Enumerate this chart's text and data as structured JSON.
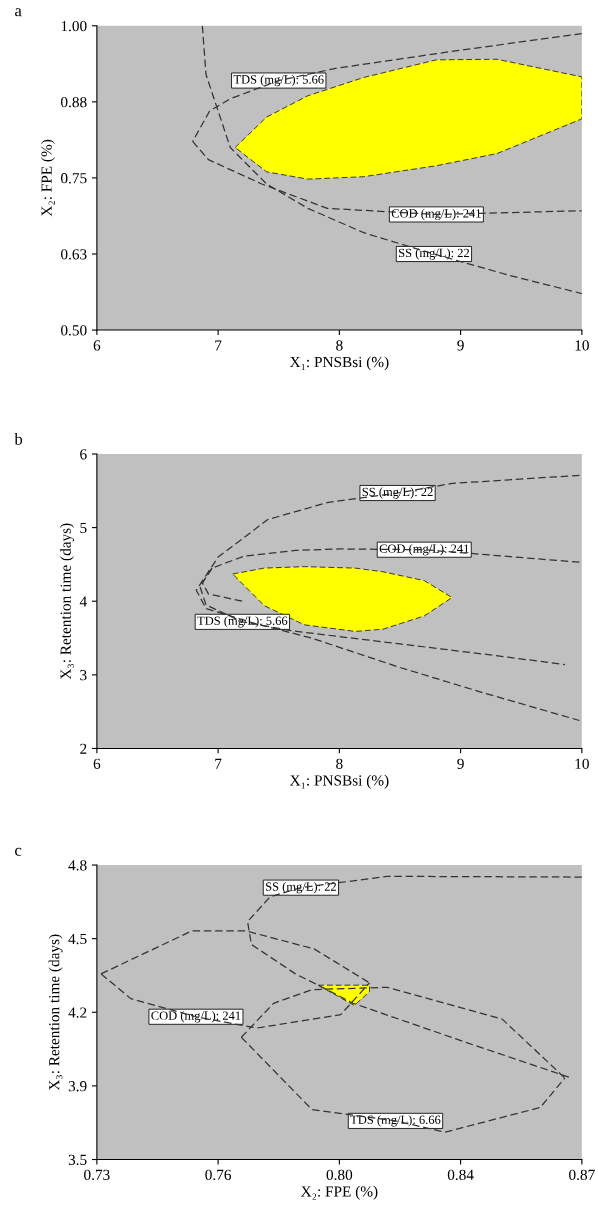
{
  "chart_data": [
    {
      "type": "line",
      "title": "a",
      "xlabel": "X₁: PNSBsi (%)",
      "ylabel": "X₂: FPE (%)",
      "xlim": [
        6,
        10
      ],
      "xticks": [
        6,
        7,
        8,
        9,
        10
      ],
      "ylim": [
        0.5,
        1.0
      ],
      "yticks": [
        {
          "value": 0.5,
          "label": "0.50"
        },
        {
          "value": 0.625,
          "label": "0.63"
        },
        {
          "value": 0.75,
          "label": "0.75"
        },
        {
          "value": 0.875,
          "label": "0.88"
        },
        {
          "value": 1.0,
          "label": "1.00"
        }
      ],
      "line_style": "dashed",
      "series": [
        {
          "type": "area",
          "color": "#ffff00",
          "x": [
            7.14,
            7.4,
            7.74,
            8.2,
            8.8,
            9.3,
            10,
            10,
            9.3,
            8.8,
            8.2,
            7.74,
            7.4
          ],
          "values": [
            0.8,
            0.85,
            0.885,
            0.915,
            0.944,
            0.945,
            0.916,
            0.847,
            0.79,
            0.77,
            0.752,
            0.748,
            0.76
          ]
        },
        {
          "color": "#333333",
          "x": [
            10,
            9,
            7.97,
            7.5,
            7.1,
            6.93,
            6.79
          ],
          "values": [
            0.987,
            0.96,
            0.93,
            0.91,
            0.88,
            0.86,
            0.81
          ]
        },
        {
          "color": "#333333",
          "x": [
            6.79,
            6.92,
            7.36,
            7.9,
            8.8,
            10
          ],
          "values": [
            0.81,
            0.78,
            0.74,
            0.7,
            0.69,
            0.696
          ]
        },
        {
          "color": "#333333",
          "x": [
            6.87,
            6.9,
            7.0,
            7.1,
            7.4,
            7.74,
            8.2,
            8.78,
            9.4,
            10
          ],
          "values": [
            1.0,
            0.92,
            0.86,
            0.8,
            0.74,
            0.7,
            0.66,
            0.625,
            0.59,
            0.56
          ]
        }
      ],
      "annotations": [
        {
          "text": "TDS (mg/L): 5.66",
          "x": 7.5,
          "y": 0.91
        },
        {
          "text": "COD (mg/L): 241",
          "x": 8.8,
          "y": 0.69
        },
        {
          "text": "SS (mg/L): 22",
          "x": 8.78,
          "y": 0.625
        }
      ]
    },
    {
      "type": "line",
      "title": "b",
      "xlabel": "X₁: PNSBsi (%)",
      "ylabel": "X₃: Retention time (days)",
      "xlim": [
        6,
        10
      ],
      "xticks": [
        6,
        7,
        8,
        9,
        10
      ],
      "ylim": [
        2,
        6
      ],
      "yticks": [
        2,
        3,
        4,
        5,
        6
      ],
      "line_style": "dashed",
      "series": [
        {
          "type": "area",
          "color": "#ffff00",
          "x": [
            7.12,
            7.38,
            7.71,
            8.13,
            8.36,
            8.7,
            8.93,
            8.7,
            8.36,
            8.13,
            7.71,
            7.38
          ],
          "values": [
            4.37,
            4.45,
            4.47,
            4.45,
            4.4,
            4.28,
            4.05,
            3.8,
            3.62,
            3.59,
            3.68,
            3.94
          ]
        },
        {
          "color": "#333333",
          "x": [
            9.98,
            8.93,
            8.48,
            7.9,
            7.41,
            7.0,
            6.82,
            6.9,
            7.3,
            7.77,
            8.5,
            9.2,
            9.98
          ],
          "values": [
            5.71,
            5.6,
            5.47,
            5.34,
            5.11,
            4.6,
            4.15,
            3.9,
            3.7,
            3.5,
            3.1,
            2.75,
            2.38
          ]
        },
        {
          "color": "#333333",
          "x": [
            9.98,
            9.3,
            8.7,
            8.0,
            7.64,
            7.21,
            6.95,
            6.87,
            6.92,
            7.2
          ],
          "values": [
            4.53,
            4.62,
            4.7,
            4.71,
            4.69,
            4.61,
            4.45,
            4.25,
            4.1,
            4.0
          ]
        },
        {
          "color": "#333333",
          "x": [
            6.95,
            6.85,
            6.9,
            7.2,
            7.6,
            8.5,
            9.2,
            9.86
          ],
          "values": [
            4.45,
            4.2,
            3.95,
            3.72,
            3.6,
            3.42,
            3.28,
            3.14
          ]
        }
      ],
      "annotations": [
        {
          "text": "SS (mg/L): 22",
          "x": 8.48,
          "y": 5.47
        },
        {
          "text": "COD (mg/L): 241",
          "x": 8.7,
          "y": 4.7
        },
        {
          "text": "TDS (mg/L): 5.66",
          "x": 7.2,
          "y": 3.72
        }
      ]
    },
    {
      "type": "line",
      "title": "c",
      "xlabel": "X₂: FPE (%)",
      "ylabel": "X₃: Retention time (days)",
      "xlim": [
        0.73,
        0.87
      ],
      "xticks": [
        {
          "value": 0.73,
          "label": "0.73"
        },
        {
          "value": 0.765,
          "label": "0.76"
        },
        {
          "value": 0.8,
          "label": "0.80"
        },
        {
          "value": 0.835,
          "label": "0.84"
        },
        {
          "value": 0.87,
          "label": "0.87"
        }
      ],
      "ylim": [
        3.55,
        4.8
      ],
      "yticks": [
        {
          "value": 3.55,
          "label": "3.5"
        },
        {
          "value": 3.8625,
          "label": "3.9"
        },
        {
          "value": 4.175,
          "label": "4.2"
        },
        {
          "value": 4.4875,
          "label": "4.5"
        },
        {
          "value": 4.8,
          "label": "4.8"
        }
      ],
      "line_style": "dashed",
      "series": [
        {
          "type": "area",
          "color": "#ffff00",
          "x": [
            0.7939,
            0.8087,
            0.8087,
            0.8043
          ],
          "values": [
            4.29,
            4.29,
            4.262,
            4.204
          ]
        },
        {
          "color": "#333333",
          "x": [
            0.87,
            0.8138,
            0.7889,
            0.78,
            0.7735,
            0.7746,
            0.7873,
            0.7939,
            0.804,
            0.836,
            0.867
          ],
          "values": [
            4.749,
            4.752,
            4.704,
            4.665,
            4.56,
            4.463,
            4.338,
            4.29,
            4.213,
            4.05,
            3.896
          ]
        },
        {
          "color": "#333333",
          "x": [
            0.7312,
            0.7575,
            0.7729,
            0.7927,
            0.8087
          ],
          "values": [
            4.338,
            4.521,
            4.521,
            4.444,
            4.3
          ]
        },
        {
          "color": "#333333",
          "x": [
            0.7312,
            0.7398,
            0.7586,
            0.7762,
            0.8004,
            0.8087
          ],
          "values": [
            4.338,
            4.233,
            4.156,
            4.108,
            4.165,
            4.3
          ]
        },
        {
          "color": "#333333",
          "x": [
            0.7717,
            0.781,
            0.7921,
            0.8138,
            0.847,
            0.8651
          ],
          "values": [
            4.069,
            4.213,
            4.271,
            4.281,
            4.146,
            3.896
          ]
        },
        {
          "color": "#333333",
          "x": [
            0.7717,
            0.7921,
            0.8162,
            0.8305,
            0.858,
            0.8651
          ],
          "values": [
            4.069,
            3.762,
            3.714,
            3.666,
            3.771,
            3.896
          ]
        }
      ],
      "annotations": [
        {
          "text": "SS (mg/L): 22",
          "x": 0.7889,
          "y": 4.704
        },
        {
          "text": "COD (mg/L): 241",
          "x": 0.7586,
          "y": 4.156
        },
        {
          "text": "TDS (mg/L): 6.66",
          "x": 0.8162,
          "y": 3.714
        }
      ]
    }
  ]
}
